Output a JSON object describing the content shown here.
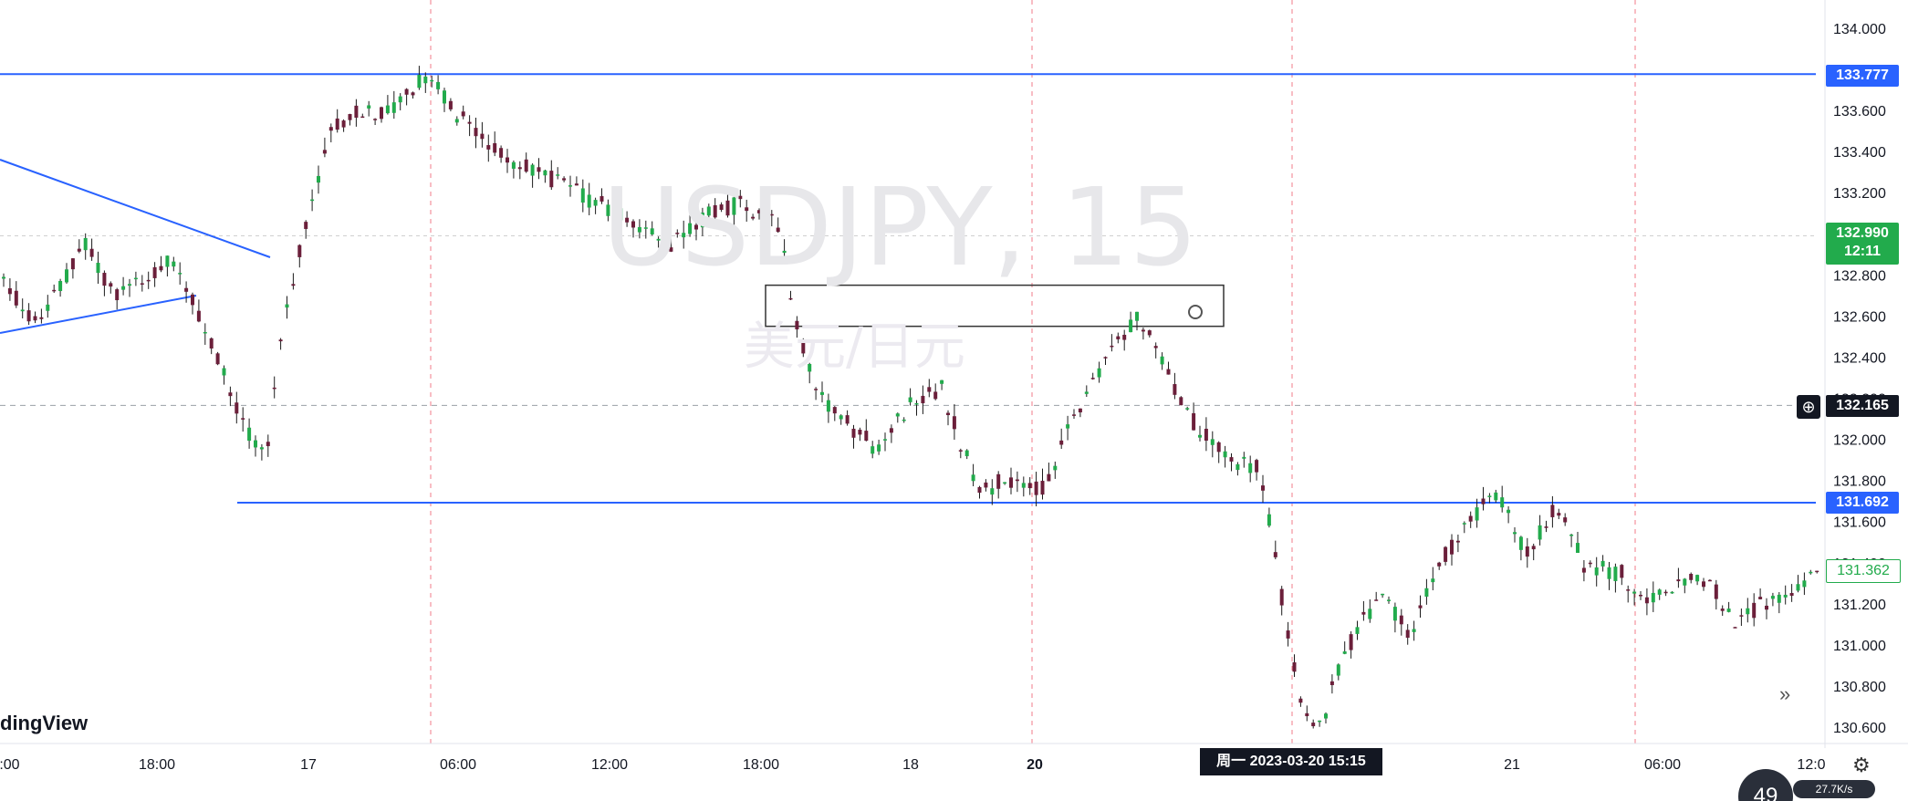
{
  "watermark": {
    "symbol": "USDJPY, 15",
    "description": "美元/日元"
  },
  "brand": "dingView",
  "price_tags": {
    "line_upper": "133.777",
    "line_lower": "131.692",
    "current_price": "132.990",
    "countdown": "12:11",
    "crosshair_price": "132.165",
    "low_marker": "131.362"
  },
  "crosshair_date": "周一 2023-03-20   15:15",
  "speed_widget": {
    "value": "49",
    "label": "27.7K/s"
  },
  "icons": {
    "expand": "double-chevron-right-icon",
    "settings": "gear-icon",
    "crosshair_add": "plus-circle-icon"
  },
  "colors": {
    "up": "#22ab4c",
    "down": "#6b1f3a",
    "wick": "#1b1b1b",
    "hline": "#2962ff",
    "trendline": "#2962ff",
    "grid": "#ececec",
    "session": "#f07b8a"
  },
  "chart_data": {
    "type": "candlestick",
    "symbol": "USDJPY",
    "interval": "15",
    "y_axis_ticks": [
      134.0,
      133.8,
      133.6,
      133.4,
      133.2,
      133.0,
      132.8,
      132.6,
      132.4,
      132.2,
      132.0,
      131.8,
      131.6,
      131.4,
      131.2,
      131.0,
      130.8,
      130.6
    ],
    "y_axis_labels": [
      "134.000",
      "133.800",
      "133.600",
      "133.400",
      "133.200",
      "133.000",
      "132.800",
      "132.600",
      "132.400",
      "132.200",
      "132.000",
      "131.800",
      "131.600",
      "131.400",
      "131.200",
      "131.000",
      "130.800",
      "130.600"
    ],
    "ylim": [
      130.5,
      134.1
    ],
    "x_axis_labels": [
      "2:00",
      "18:00",
      "17",
      "06:00",
      "12:00",
      "18:00",
      "18",
      "20",
      "21",
      "06:00",
      "12:0"
    ],
    "horizontal_lines": [
      133.777,
      131.692
    ],
    "current_price": 132.99,
    "crosshair_price": 132.165,
    "key_levels": {
      "high": 133.8,
      "rally_high": 132.63,
      "low": 130.55,
      "last": 131.362
    },
    "rectangle_zone": {
      "top": 132.75,
      "bottom": 132.55
    },
    "triangle_upper": [
      [
        0,
        133.4
      ],
      [
        300,
        132.85
      ]
    ],
    "triangle_lower": [
      [
        0,
        132.25
      ],
      [
        220,
        132.7
      ]
    ],
    "session_breaks": [
      "17",
      "18",
      "20",
      "21"
    ]
  }
}
